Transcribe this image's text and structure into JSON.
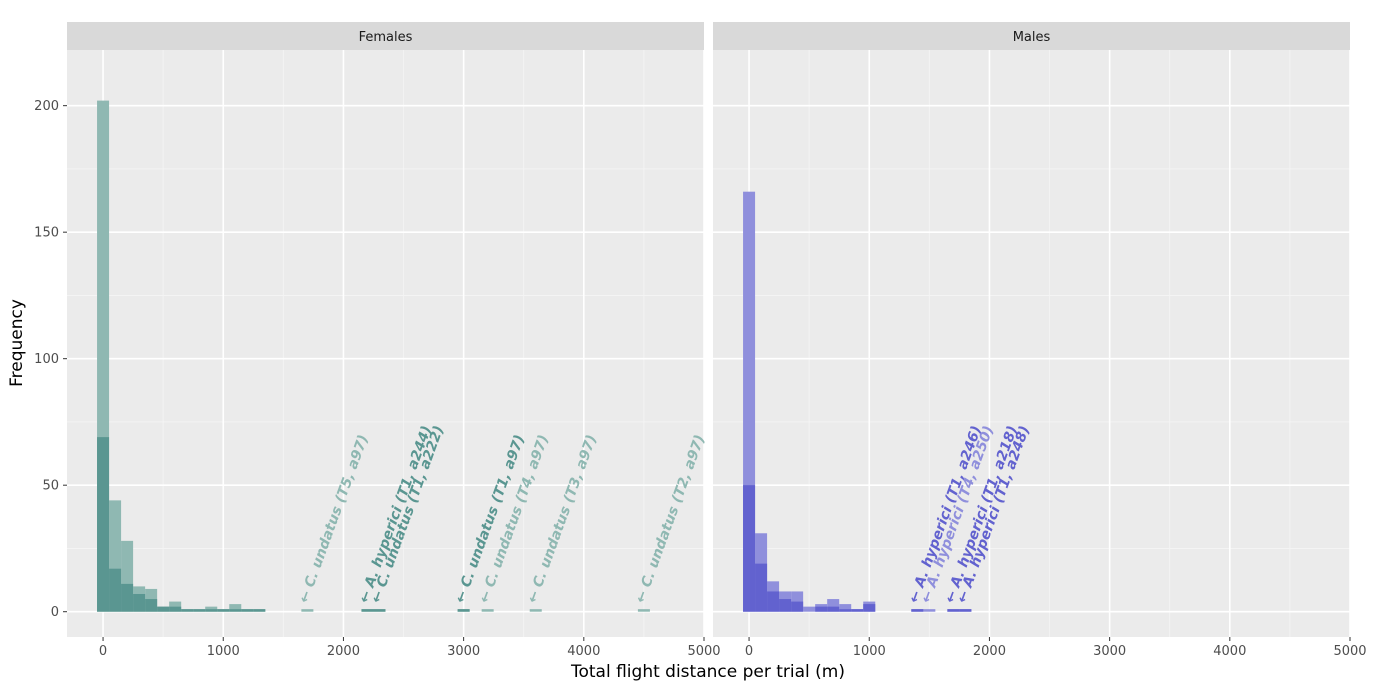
{
  "chart_data": {
    "type": "bar",
    "xlabel": "Total flight distance per trial (m)",
    "ylabel": "Frequency",
    "xlim": [
      -300,
      5000
    ],
    "ylim": [
      -10,
      222
    ],
    "x_ticks": [
      0,
      1000,
      2000,
      3000,
      4000,
      5000
    ],
    "y_ticks": [
      0,
      50,
      100,
      150,
      200
    ],
    "bin_width": 100,
    "grid": true,
    "legend": "none",
    "panels": [
      {
        "name": "Females",
        "colors": {
          "light": "#8fb8b2",
          "dark": "#5a9691"
        },
        "series": [
          {
            "tone": "light",
            "bin_starts": [
              -50,
              50,
              150,
              250,
              350,
              450,
              550,
              650,
              750,
              850,
              950,
              1050,
              1150,
              1250,
              1650,
              2150,
              2250,
              2950,
              3150,
              3550,
              4450
            ],
            "values": [
              202,
              44,
              28,
              10,
              9,
              2,
              4,
              1,
              1,
              2,
              1,
              3,
              1,
              1,
              1,
              1,
              1,
              1,
              1,
              1,
              1
            ]
          },
          {
            "tone": "dark",
            "bin_starts": [
              -50,
              50,
              150,
              250,
              350,
              450,
              550,
              650,
              750,
              850,
              950,
              1050,
              1150,
              1250,
              2150,
              2250,
              2950
            ],
            "values": [
              69,
              17,
              11,
              7,
              5,
              2,
              2,
              1,
              1,
              1,
              1,
              1,
              1,
              1,
              1,
              1,
              1
            ]
          }
        ],
        "annotations": [
          {
            "x": 1700,
            "text": "← C. undatus (T5, a97)",
            "tone": "light"
          },
          {
            "x": 2200,
            "text": "← A. hyperici (T1, a244)",
            "tone": "dark"
          },
          {
            "x": 2300,
            "text": "← C. undatus (T1, a222)",
            "tone": "dark"
          },
          {
            "x": 3000,
            "text": "← C. undatus (T1, a97)",
            "tone": "dark"
          },
          {
            "x": 3200,
            "text": "← C. undatus (T4, a97)",
            "tone": "light"
          },
          {
            "x": 3600,
            "text": "← C. undatus (T3, a97)",
            "tone": "light"
          },
          {
            "x": 4500,
            "text": "← C. undatus (T2, a97)",
            "tone": "light"
          }
        ]
      },
      {
        "name": "Males",
        "colors": {
          "light": "#8f8fdc",
          "dark": "#6262cf"
        },
        "series": [
          {
            "tone": "light",
            "bin_starts": [
              -50,
              50,
              150,
              250,
              350,
              450,
              550,
              650,
              750,
              850,
              950,
              1350,
              1450,
              1650,
              1750
            ],
            "values": [
              166,
              31,
              12,
              8,
              8,
              2,
              3,
              5,
              3,
              1,
              4,
              1,
              1,
              1,
              1
            ]
          },
          {
            "tone": "dark",
            "bin_starts": [
              -50,
              50,
              150,
              250,
              350,
              550,
              650,
              750,
              850,
              950,
              1350,
              1650,
              1750
            ],
            "values": [
              50,
              19,
              8,
              5,
              4,
              2,
              2,
              1,
              1,
              3,
              1,
              1,
              1
            ]
          }
        ],
        "annotations": [
          {
            "x": 1400,
            "text": "← A. hyperici (T1, a246)",
            "tone": "dark"
          },
          {
            "x": 1500,
            "text": "← A. hyperici (T4, a250)",
            "tone": "light"
          },
          {
            "x": 1700,
            "text": "← A. hyperici (T1, a218)",
            "tone": "dark"
          },
          {
            "x": 1800,
            "text": "← A. hyperici (T1, a248)",
            "tone": "dark"
          }
        ]
      }
    ]
  }
}
